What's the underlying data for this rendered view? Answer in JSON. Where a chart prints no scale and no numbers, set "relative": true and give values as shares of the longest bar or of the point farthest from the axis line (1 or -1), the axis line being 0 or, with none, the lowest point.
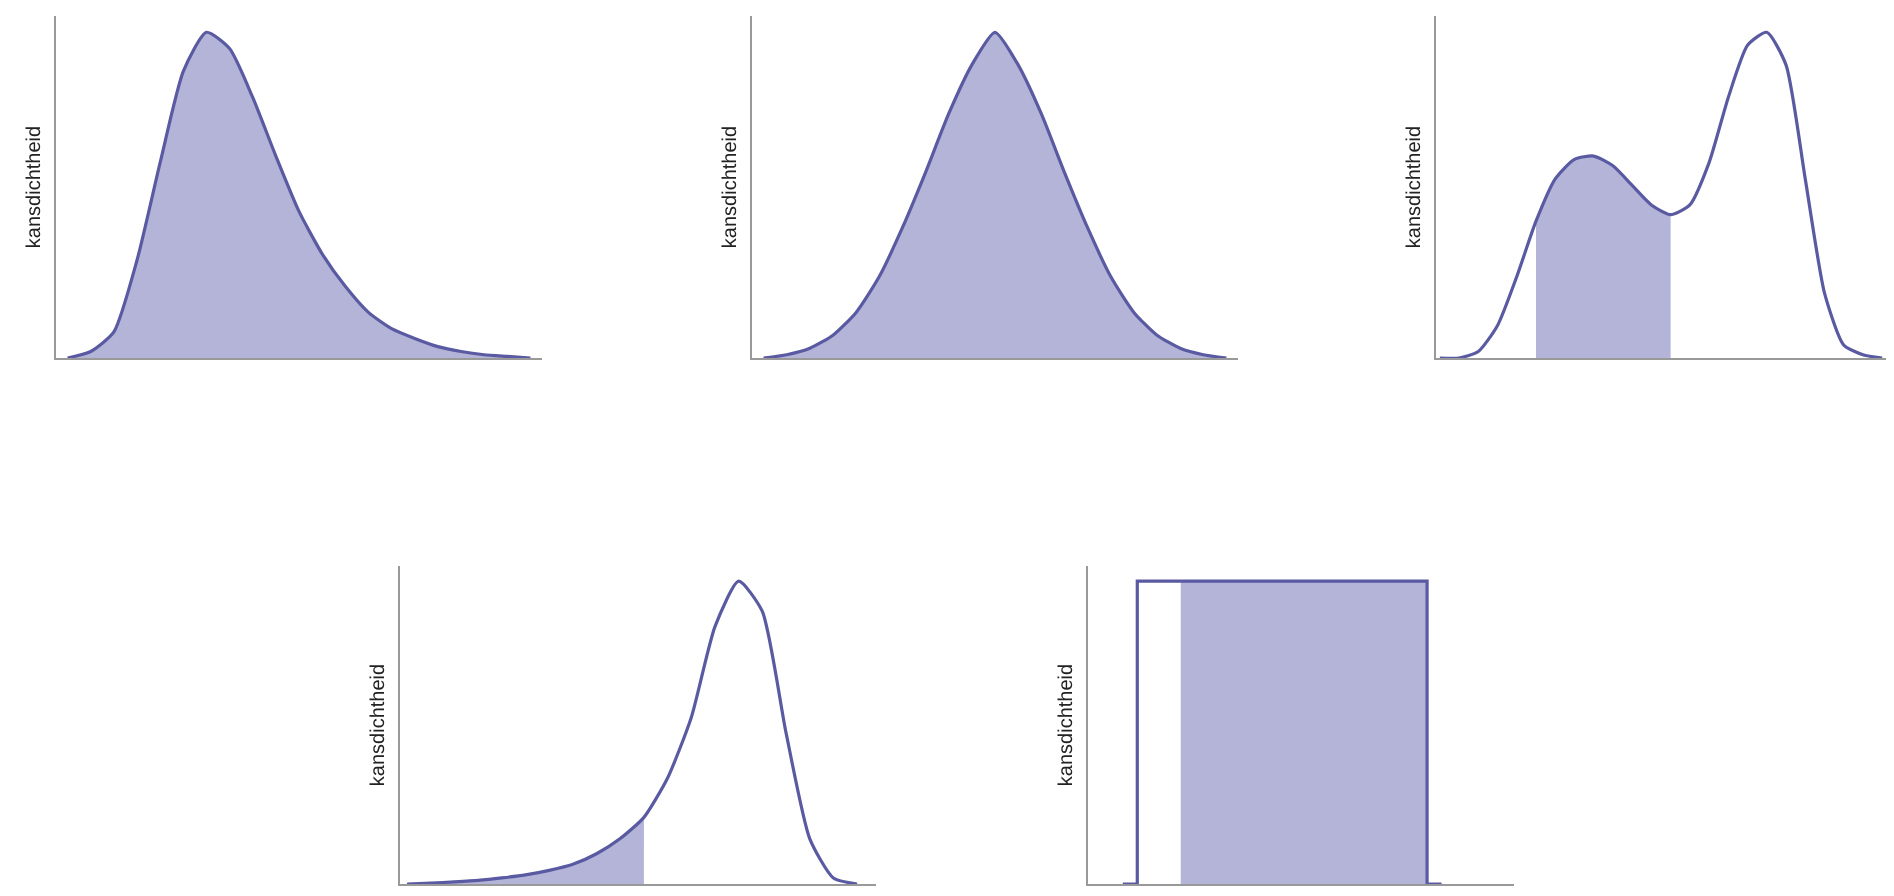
{
  "chart_data": [
    {
      "type": "area",
      "ylabel": "kansdichtheid",
      "relative": true,
      "categories": [
        null,
        null,
        null,
        null,
        null,
        null,
        null,
        null,
        null,
        null,
        null,
        null,
        null,
        null,
        null,
        null,
        null,
        null,
        null,
        null,
        null
      ],
      "series": [
        {
          "color": "#b4b4d8",
          "values": [
            0,
            0.02,
            0.08,
            0.3,
            0.6,
            0.88,
            1,
            0.95,
            0.8,
            0.62,
            0.45,
            0.32,
            0.22,
            0.14,
            0.09,
            0.06,
            0.035,
            0.02,
            0.01,
            0.005,
            0
          ]
        }
      ]
    },
    {
      "type": "area",
      "ylabel": "kansdichtheid",
      "relative": true,
      "categories": [
        null,
        null,
        null,
        null,
        null,
        null,
        null,
        null,
        null,
        null,
        null,
        null,
        null,
        null,
        null,
        null,
        null,
        null,
        null,
        null,
        null
      ],
      "series": [
        {
          "color": "#b4b4d8",
          "values": [
            0,
            0.01,
            0.03,
            0.07,
            0.14,
            0.25,
            0.4,
            0.57,
            0.75,
            0.9,
            1,
            0.9,
            0.75,
            0.57,
            0.4,
            0.25,
            0.14,
            0.07,
            0.03,
            0.01,
            0
          ]
        }
      ]
    },
    {
      "type": "line",
      "ylabel": "kansdichtheid",
      "relative": true,
      "categories": [
        null,
        null,
        null,
        null,
        null,
        null,
        null,
        null,
        null,
        null,
        null,
        null,
        null,
        null,
        null,
        null,
        null,
        null,
        null,
        null,
        null,
        null,
        null,
        null
      ],
      "series": [
        {
          "color": "#5a5aa2",
          "values": [
            0,
            0,
            0.02,
            0.1,
            0.25,
            0.42,
            0.55,
            0.61,
            0.62,
            0.59,
            0.53,
            0.47,
            0.44,
            0.47,
            0.6,
            0.8,
            0.96,
            1,
            0.9,
            0.55,
            0.2,
            0.04,
            0.01,
            0
          ]
        },
        {
          "type": "area",
          "color": "#b4b4d8",
          "values": [
            null,
            null,
            null,
            null,
            null,
            0.42,
            0.55,
            0.61,
            0.62,
            0.59,
            0.53,
            0.47,
            0.44,
            null,
            null,
            null,
            null,
            null,
            null,
            null,
            null,
            null,
            null,
            null
          ]
        }
      ]
    },
    {
      "type": "line",
      "ylabel": "kansdichtheid",
      "relative": true,
      "categories": [
        null,
        null,
        null,
        null,
        null,
        null,
        null,
        null,
        null,
        null,
        null,
        null,
        null,
        null,
        null,
        null,
        null,
        null,
        null,
        null
      ],
      "series": [
        {
          "color": "#5a5aa2",
          "values": [
            0,
            0.003,
            0.007,
            0.012,
            0.02,
            0.03,
            0.045,
            0.065,
            0.1,
            0.15,
            0.22,
            0.35,
            0.55,
            0.85,
            1,
            0.9,
            0.5,
            0.15,
            0.02,
            0
          ]
        },
        {
          "type": "area",
          "color": "#b4b4d8",
          "values": [
            0,
            0.003,
            0.007,
            0.012,
            0.02,
            0.03,
            0.045,
            0.065,
            0.1,
            0.15,
            0.22,
            null,
            null,
            null,
            null,
            null,
            null,
            null,
            null,
            null
          ]
        }
      ]
    },
    {
      "type": "step",
      "ylabel": "kansdichtheid",
      "relative": true,
      "categories": [
        null,
        null,
        null,
        null,
        null,
        null,
        null,
        null,
        null,
        null,
        null,
        null
      ],
      "series": [
        {
          "color": "#5a5aa2",
          "values": [
            0,
            1,
            1,
            1,
            1,
            1,
            1,
            1,
            1,
            1,
            1,
            0
          ]
        },
        {
          "type": "area",
          "color": "#b4b4d8",
          "values": [
            null,
            null,
            1,
            1,
            1,
            1,
            1,
            1,
            1,
            1,
            1,
            0
          ]
        }
      ]
    }
  ]
}
